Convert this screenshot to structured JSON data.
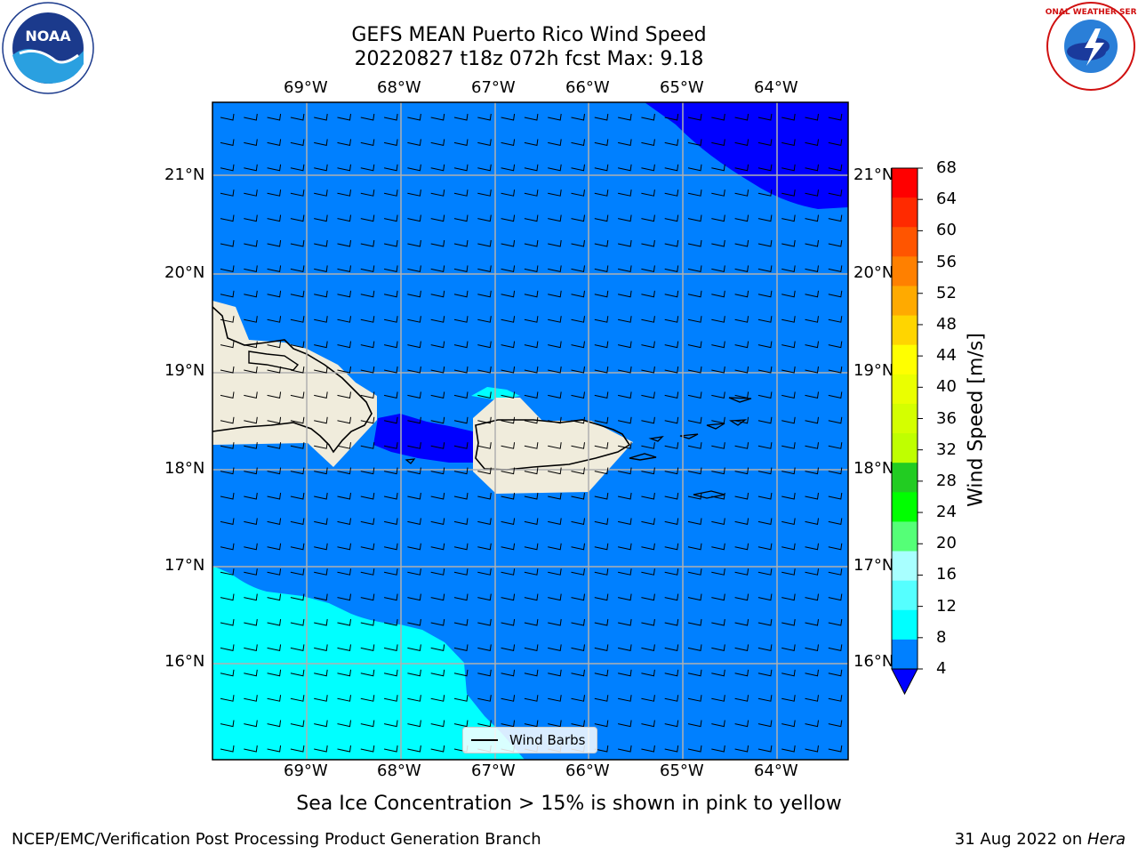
{
  "title": {
    "line1": "GEFS MEAN Puerto Rico Wind Speed",
    "line2": "20220827 t18z 072h fcst   Max: 9.18"
  },
  "logos": {
    "left": "NOAA",
    "right": "NATIONAL WEATHER SERVICE"
  },
  "axes": {
    "lon_labels": [
      "69°W",
      "68°W",
      "67°W",
      "66°W",
      "65°W",
      "64°W"
    ],
    "lat_labels": [
      "21°N",
      "20°N",
      "19°N",
      "18°N",
      "17°N",
      "16°N"
    ]
  },
  "colorbar": {
    "label": "Wind Speed [m/s]",
    "ticks": [
      "68",
      "64",
      "60",
      "56",
      "52",
      "48",
      "44",
      "40",
      "36",
      "32",
      "28",
      "24",
      "20",
      "16",
      "12",
      "8",
      "4"
    ],
    "colors": [
      "#ff0000",
      "#ff2a00",
      "#ff5500",
      "#ff8000",
      "#ffaa00",
      "#ffd500",
      "#ffff00",
      "#eaff00",
      "#d4ff00",
      "#bfff00",
      "#22cc22",
      "#00ff00",
      "#55ff77",
      "#a8ffff",
      "#55ffff",
      "#00ffff",
      "#0080ff"
    ],
    "underflow_color": "#0000ff"
  },
  "legend": {
    "label": "Wind Barbs"
  },
  "note": "Sea Ice Concentration > 15% is shown in pink to yellow",
  "footer": {
    "left": "NCEP/EMC/Verification Post Processing Product Generation Branch",
    "right_prefix": "31 Aug 2022 on ",
    "right_machine": "Hera"
  },
  "colors": {
    "ocean": "#0080ff",
    "land": "#f0ecdc",
    "cyan": "#00ffff",
    "blue": "#0000ff"
  }
}
